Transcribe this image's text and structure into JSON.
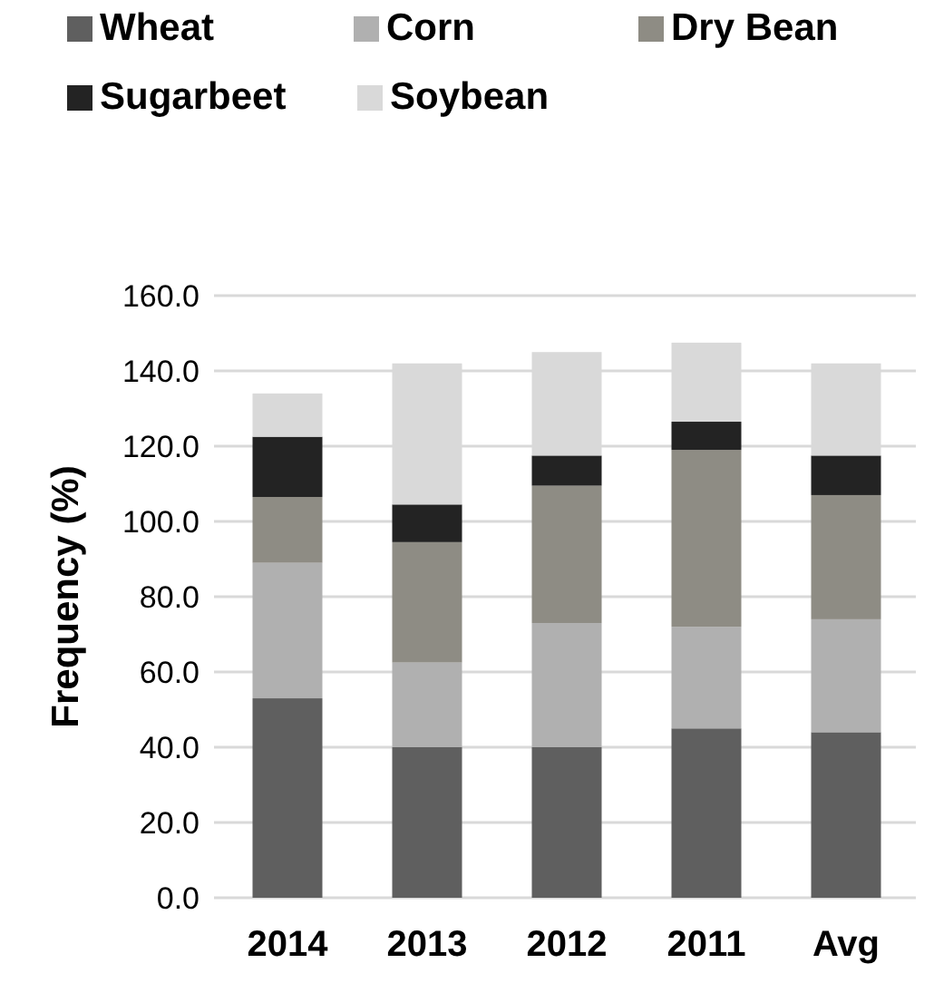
{
  "chart_data": {
    "type": "bar",
    "stacked": true,
    "ylabel": "Frequency (%)",
    "categories": [
      "2014",
      "2013",
      "2012",
      "2011",
      "Avg"
    ],
    "series": [
      {
        "name": "Wheat",
        "color": "#5f5f5f",
        "values": [
          53,
          40,
          40,
          45,
          44
        ]
      },
      {
        "name": "Corn",
        "color": "#b0b0b0",
        "values": [
          36,
          22.5,
          33,
          27,
          30
        ]
      },
      {
        "name": "Dry Bean",
        "color": "#8e8c84",
        "values": [
          17.5,
          32,
          36.5,
          47,
          33
        ]
      },
      {
        "name": "Sugarbeet",
        "color": "#232323",
        "values": [
          16,
          10,
          8,
          7.5,
          10.5
        ]
      },
      {
        "name": "Soybean",
        "color": "#d9d9d9",
        "values": [
          11.5,
          37.5,
          27.5,
          21,
          24.5
        ]
      }
    ],
    "ylim": [
      0,
      160
    ],
    "yticks": [
      {
        "value": 0,
        "label": "0.0"
      },
      {
        "value": 20,
        "label": "20.0"
      },
      {
        "value": 40,
        "label": "40.0"
      },
      {
        "value": 60,
        "label": "60.0"
      },
      {
        "value": 80,
        "label": "80.0"
      },
      {
        "value": 100,
        "label": "100.0"
      },
      {
        "value": 120,
        "label": "120.0"
      },
      {
        "value": 140,
        "label": "140.0"
      },
      {
        "value": 160,
        "label": "160.0"
      }
    ],
    "grid": "y",
    "legend": "top"
  }
}
